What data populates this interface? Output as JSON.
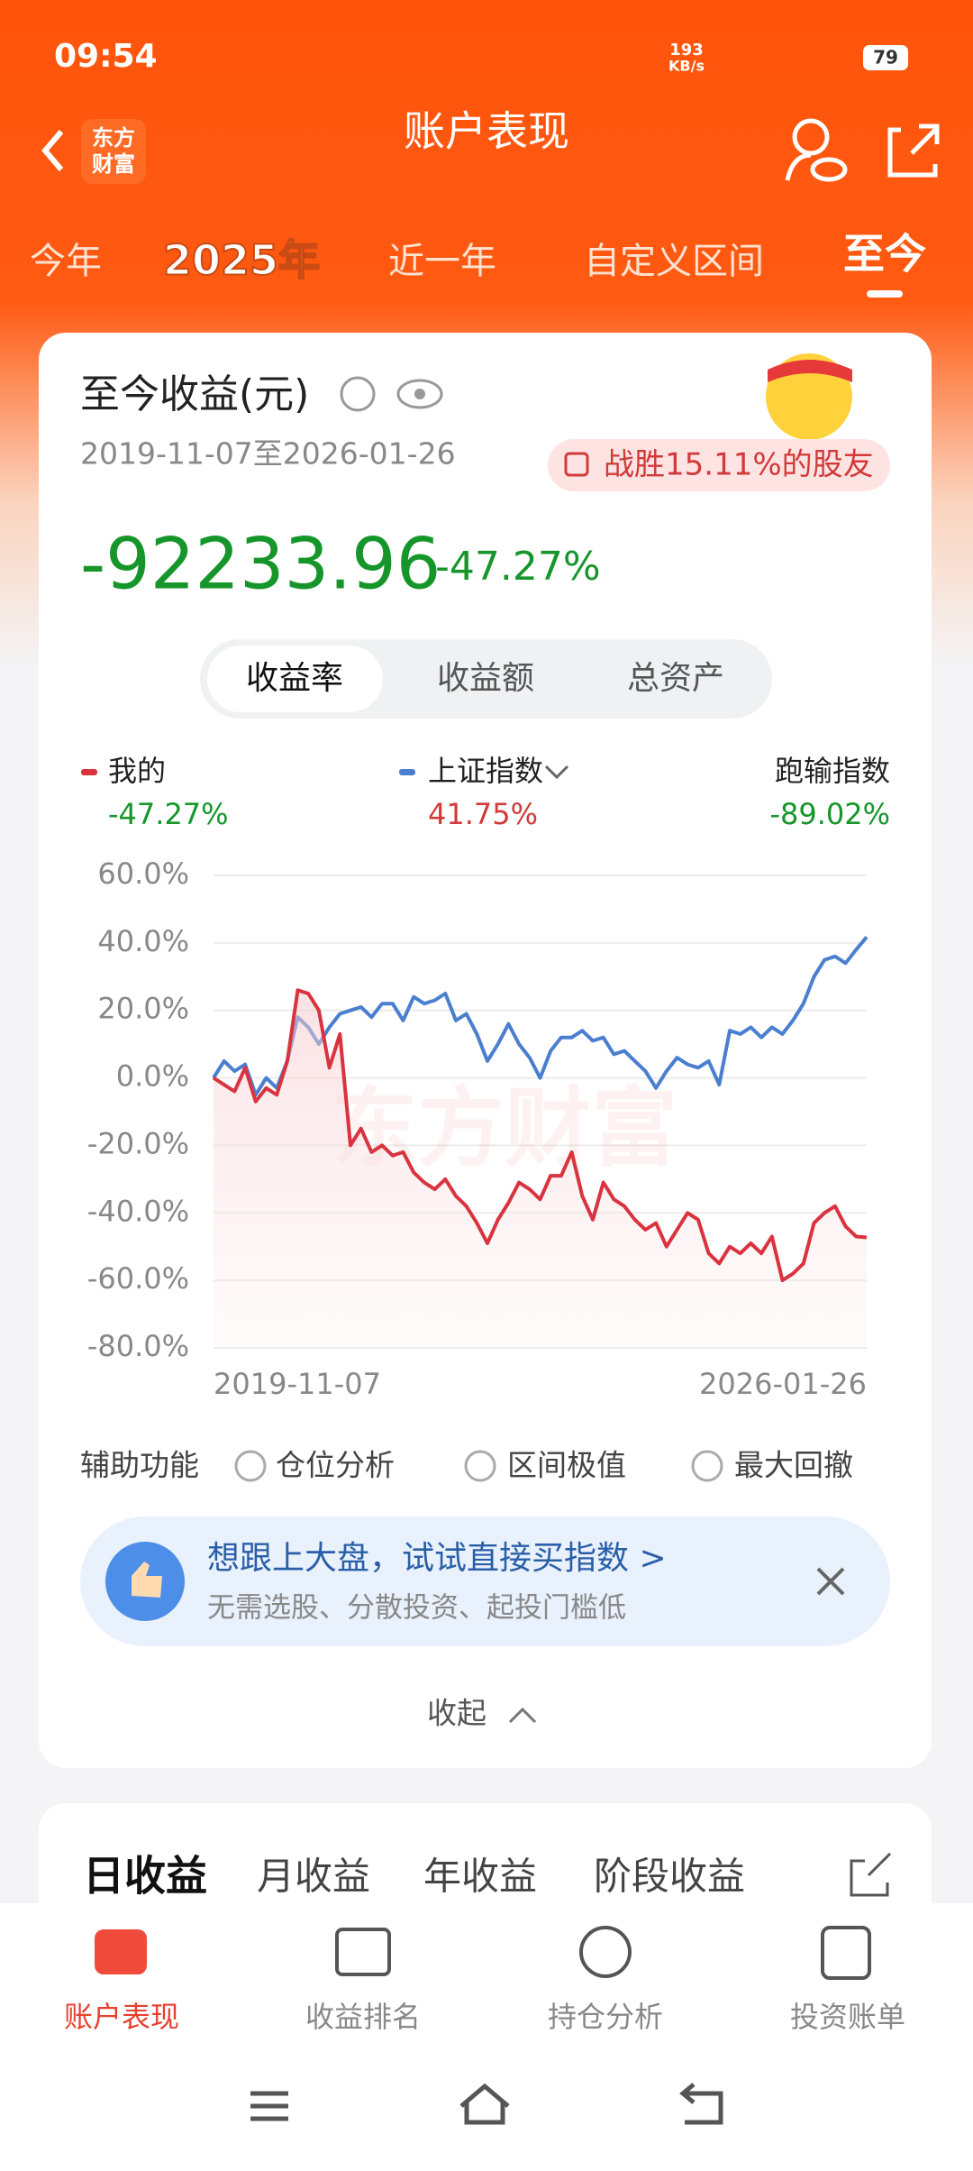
{
  "status_bar": {
    "time": "09:54",
    "net_speed": "193",
    "net_unit": "KB/s",
    "battery": "79"
  },
  "header": {
    "logo_top": "东方",
    "logo_bottom": "财富",
    "title": "账户表现"
  },
  "tabs": [
    "今年",
    "2025年",
    "近一年",
    "自定义区间",
    "至今"
  ],
  "active_tab": 4,
  "summary": {
    "title": "至今收益(元)",
    "date_range": "2019-11-07至2026-01-26",
    "badge": "战胜15.11%的股友",
    "amount": "-92233.96",
    "rate": "-47.27%"
  },
  "segments": [
    "收益率",
    "收益额",
    "总资产"
  ],
  "active_segment": 0,
  "chart_data": {
    "type": "line",
    "watermark": "东方财富",
    "categories": [
      "2019-11-07",
      null,
      null,
      null,
      null,
      null,
      null,
      null,
      null,
      null,
      null,
      null,
      null,
      null,
      null,
      null,
      null,
      null,
      null,
      null,
      null,
      null,
      null,
      null,
      null,
      null,
      null,
      null,
      null,
      null,
      null,
      null,
      null,
      null,
      null,
      null,
      null,
      null,
      null,
      null,
      null,
      null,
      null,
      null,
      null,
      null,
      null,
      null,
      null,
      null,
      null,
      null,
      null,
      null,
      null,
      null,
      null,
      null,
      null,
      null,
      null,
      null,
      "2026-01-26"
    ],
    "series": [
      {
        "name": "我的",
        "color": "#d9333f",
        "legend_value": "-47.27%",
        "area": true,
        "values": [
          0,
          -2,
          -4,
          3,
          -7,
          -3,
          -5,
          5,
          26,
          25,
          20,
          3,
          13,
          -20,
          -15,
          -22,
          -20,
          -23,
          -22,
          -28,
          -31,
          -33,
          -30,
          -35,
          -38,
          -43,
          -49,
          -42,
          -37,
          -31,
          -33,
          -36,
          -29,
          -29,
          -22,
          -35,
          -42,
          -31,
          -36,
          -38,
          -42,
          -45,
          -43,
          -50,
          -45,
          -40,
          -42,
          -52,
          -55,
          -50,
          -52,
          -49,
          -52,
          -47,
          -60,
          -58,
          -55,
          -43,
          -40,
          -38,
          -44,
          -47,
          -47.27
        ]
      },
      {
        "name": "上证指数",
        "color": "#4a7fd0",
        "legend_value": "41.75%",
        "values": [
          0,
          5,
          2,
          4,
          -5,
          0,
          -3,
          5,
          18,
          15,
          10,
          15,
          19,
          20,
          21,
          18,
          22,
          22,
          17,
          24,
          22,
          23,
          25,
          17,
          19,
          13,
          5,
          10,
          16,
          10,
          6,
          0,
          8,
          12,
          12,
          14,
          11,
          12,
          7,
          8,
          5,
          2,
          -3,
          2,
          6,
          4,
          3,
          5,
          -2,
          14,
          13,
          15,
          12,
          15,
          13,
          17,
          22,
          30,
          35,
          36,
          34,
          38,
          41.75
        ]
      }
    ],
    "gap_legend": {
      "name": "跑输指数",
      "value": "-89.02%"
    },
    "ylim": [
      -80,
      60
    ],
    "yticks": [
      {
        "value": -80,
        "label": "-80.0%"
      },
      {
        "value": -60,
        "label": "-60.0%"
      },
      {
        "value": -40,
        "label": "-40.0%"
      },
      {
        "value": -20,
        "label": "-20.0%"
      },
      {
        "value": 0,
        "label": "0.0%"
      },
      {
        "value": 20,
        "label": "20.0%"
      },
      {
        "value": 40,
        "label": "40.0%"
      },
      {
        "value": 60,
        "label": "60.0%"
      }
    ],
    "grid": true
  },
  "tools": {
    "label": "辅助功能",
    "options": [
      "仓位分析",
      "区间极值",
      "最大回撤"
    ]
  },
  "promo": {
    "title": "想跟上大盘，试试直接买指数 >",
    "subtitle": "无需选股、分散投资、起投门槛低"
  },
  "collapse": "收起",
  "income_tabs": [
    "日收益",
    "月收益",
    "年收益",
    "阶段收益"
  ],
  "active_income_tab": 0,
  "bottom_nav": [
    "账户表现",
    "收益排名",
    "持仓分析",
    "投资账单"
  ],
  "active_nav": 0
}
